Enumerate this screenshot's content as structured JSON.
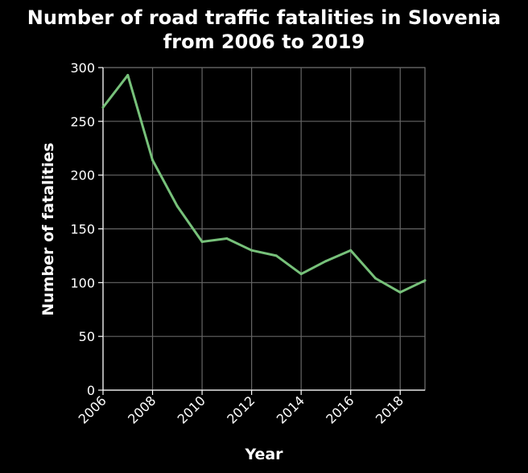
{
  "chart_data": {
    "type": "line",
    "title_lines": [
      "Number of road traffic fatalities in Slovenia",
      "from 2006 to 2019"
    ],
    "xlabel": "Year",
    "ylabel": "Number of fatalities",
    "xlim": [
      2006,
      2019
    ],
    "ylim": [
      0,
      300
    ],
    "x_ticks": [
      2006,
      2008,
      2010,
      2012,
      2014,
      2016,
      2018
    ],
    "y_ticks": [
      0,
      50,
      100,
      150,
      200,
      250,
      300
    ],
    "grid": true,
    "line_color": "#77c17a",
    "background_color": "#000000",
    "grid_color": "#666666",
    "series": [
      {
        "x": [
          2006,
          2007,
          2008,
          2009,
          2010,
          2011,
          2012,
          2013,
          2014,
          2015,
          2016,
          2017,
          2018,
          2019
        ],
        "values": [
          263,
          293,
          214,
          171,
          138,
          141,
          130,
          125,
          108,
          120,
          130,
          104,
          91,
          102
        ]
      }
    ]
  }
}
